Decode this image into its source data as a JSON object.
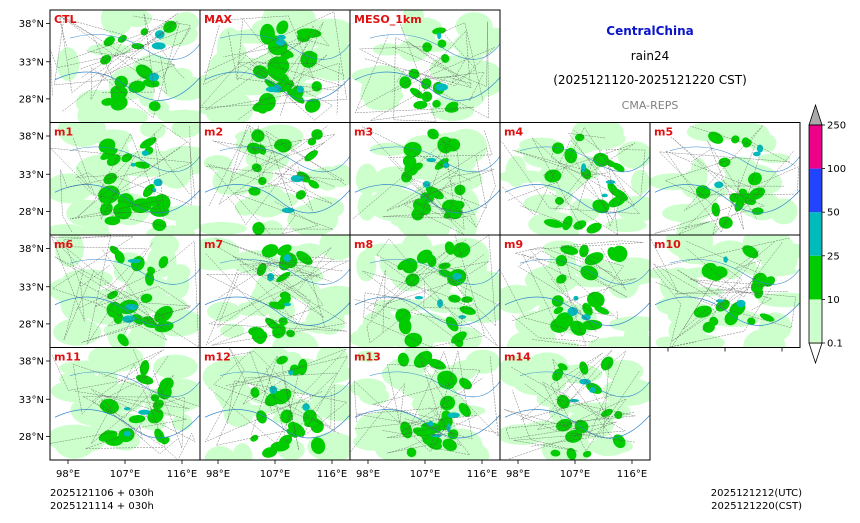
{
  "title": {
    "region": "CentralChina",
    "variable": "rain24",
    "period": "(2025121120-2025121220 CST)",
    "source": "CMA-REPS"
  },
  "panels": [
    {
      "label": "CTL",
      "rain_coverage": 0.45
    },
    {
      "label": "MAX",
      "rain_coverage": 0.75
    },
    {
      "label": "MESO_1km",
      "rain_coverage": 0.35
    },
    {
      "label": "m1",
      "rain_coverage": 0.6
    },
    {
      "label": "m2",
      "rain_coverage": 0.4
    },
    {
      "label": "m3",
      "rain_coverage": 0.55
    },
    {
      "label": "m4",
      "rain_coverage": 0.5
    },
    {
      "label": "m5",
      "rain_coverage": 0.45
    },
    {
      "label": "m6",
      "rain_coverage": 0.55
    },
    {
      "label": "m7",
      "rain_coverage": 0.5
    },
    {
      "label": "m8",
      "rain_coverage": 0.6
    },
    {
      "label": "m9",
      "rain_coverage": 0.55
    },
    {
      "label": "m10",
      "rain_coverage": 0.5
    },
    {
      "label": "m11",
      "rain_coverage": 0.5
    },
    {
      "label": "m12",
      "rain_coverage": 0.55
    },
    {
      "label": "m13",
      "rain_coverage": 0.6
    },
    {
      "label": "m14",
      "rain_coverage": 0.45
    }
  ],
  "axes": {
    "lat_labels": [
      "38°N",
      "33°N",
      "28°N"
    ],
    "lon_labels": [
      "98°E",
      "107°E",
      "116°E"
    ]
  },
  "colorbar": {
    "levels": [
      "0.1",
      "10",
      "25",
      "50",
      "100",
      "250"
    ],
    "colors": [
      "#ccffcc",
      "#00cc00",
      "#00bbbb",
      "#2244ff",
      "#ee0088"
    ],
    "under_color": "#ffffff",
    "over_color": "#aaaaaa"
  },
  "colors": {
    "light_rain": "#ccffcc",
    "moderate_rain": "#00cc00",
    "heavy_rain": "#00bbbb",
    "river": "#3388cc",
    "border": "#555555"
  },
  "footer": {
    "init_utc": "2025121106  +  030h",
    "init_cst": "2025121114  +  030h",
    "valid_utc": "2025121212(UTC)",
    "valid_cst": "2025121220(CST)"
  }
}
